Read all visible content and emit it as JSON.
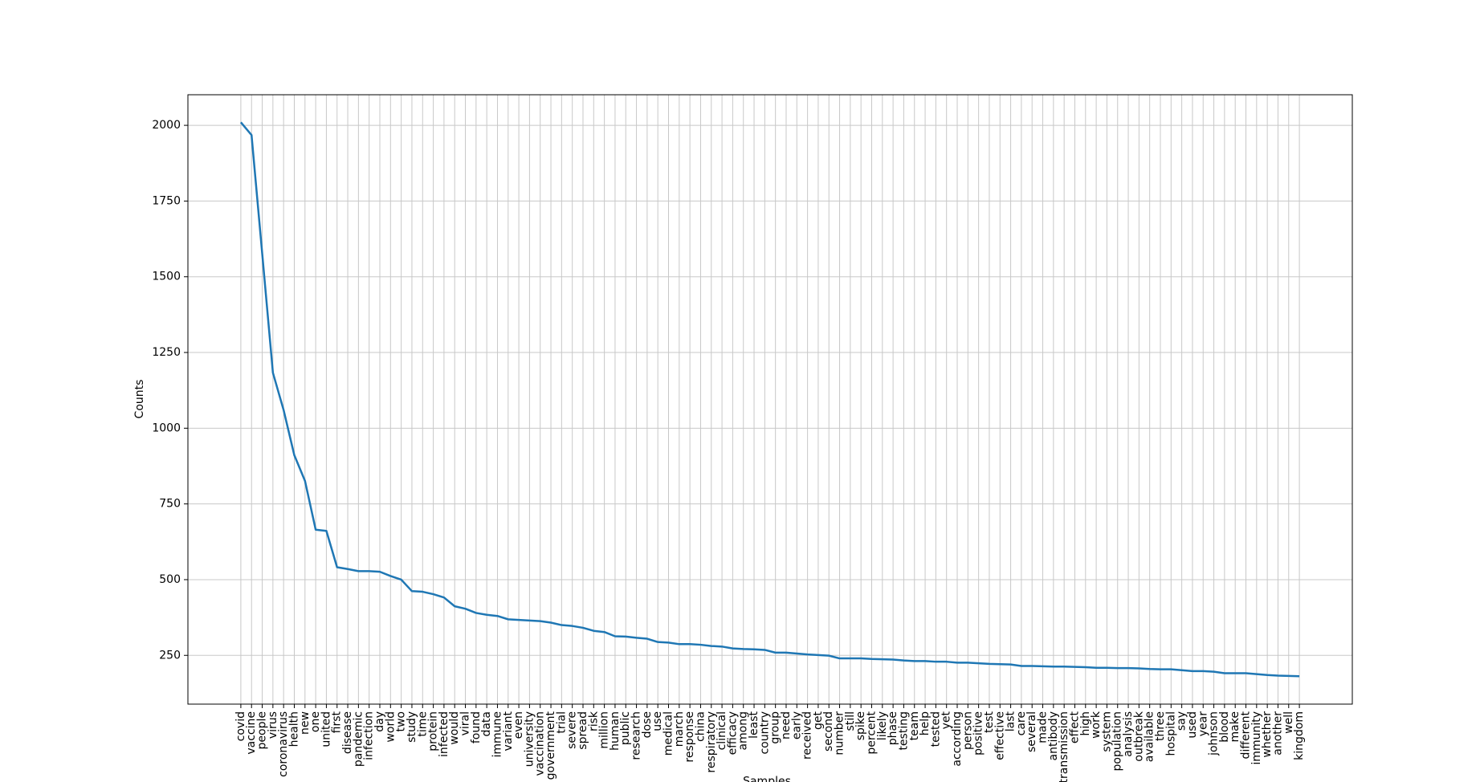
{
  "chart_data": {
    "type": "line",
    "xlabel": "Samples",
    "ylabel": "Counts",
    "categories": [
      "covid",
      "vaccine",
      "people",
      "virus",
      "coronavirus",
      "health",
      "new",
      "one",
      "united",
      "first",
      "disease",
      "pandemic",
      "infection",
      "day",
      "world",
      "two",
      "study",
      "time",
      "protein",
      "infected",
      "would",
      "viral",
      "found",
      "data",
      "immune",
      "variant",
      "even",
      "university",
      "vaccination",
      "government",
      "trial",
      "severe",
      "spread",
      "risk",
      "million",
      "human",
      "public",
      "research",
      "dose",
      "use",
      "medical",
      "march",
      "response",
      "china",
      "respiratory",
      "clinical",
      "efficacy",
      "among",
      "least",
      "country",
      "group",
      "need",
      "early",
      "received",
      "get",
      "second",
      "number",
      "still",
      "spike",
      "percent",
      "likely",
      "phase",
      "testing",
      "team",
      "help",
      "tested",
      "yet",
      "according",
      "person",
      "positive",
      "test",
      "effective",
      "last",
      "care",
      "several",
      "made",
      "antibody",
      "transmission",
      "effect",
      "high",
      "work",
      "system",
      "population",
      "analysis",
      "outbreak",
      "available",
      "three",
      "hospital",
      "say",
      "used",
      "year",
      "johnson",
      "blood",
      "make",
      "different",
      "immunity",
      "whether",
      "another",
      "well",
      "kingdom"
    ],
    "values": [
      2010,
      1968,
      1576,
      1183,
      1060,
      911,
      826,
      665,
      661,
      541,
      535,
      528,
      528,
      526,
      512,
      500,
      462,
      460,
      452,
      441,
      412,
      404,
      390,
      384,
      380,
      369,
      367,
      365,
      363,
      358,
      350,
      347,
      341,
      331,
      327,
      313,
      312,
      308,
      305,
      294,
      292,
      287,
      287,
      285,
      281,
      279,
      273,
      271,
      270,
      268,
      259,
      259,
      256,
      253,
      251,
      249,
      240,
      240,
      240,
      238,
      237,
      236,
      233,
      231,
      231,
      229,
      229,
      226,
      226,
      224,
      222,
      221,
      220,
      215,
      215,
      214,
      213,
      213,
      212,
      211,
      209,
      209,
      208,
      208,
      207,
      205,
      204,
      204,
      201,
      198,
      198,
      196,
      191,
      191,
      191,
      188,
      185,
      183,
      182,
      181
    ],
    "color": "#1f77b4",
    "ylim": [
      89,
      2101
    ],
    "yticks": [
      250,
      500,
      750,
      1000,
      1250,
      1500,
      1750,
      2000
    ],
    "grid": true
  }
}
